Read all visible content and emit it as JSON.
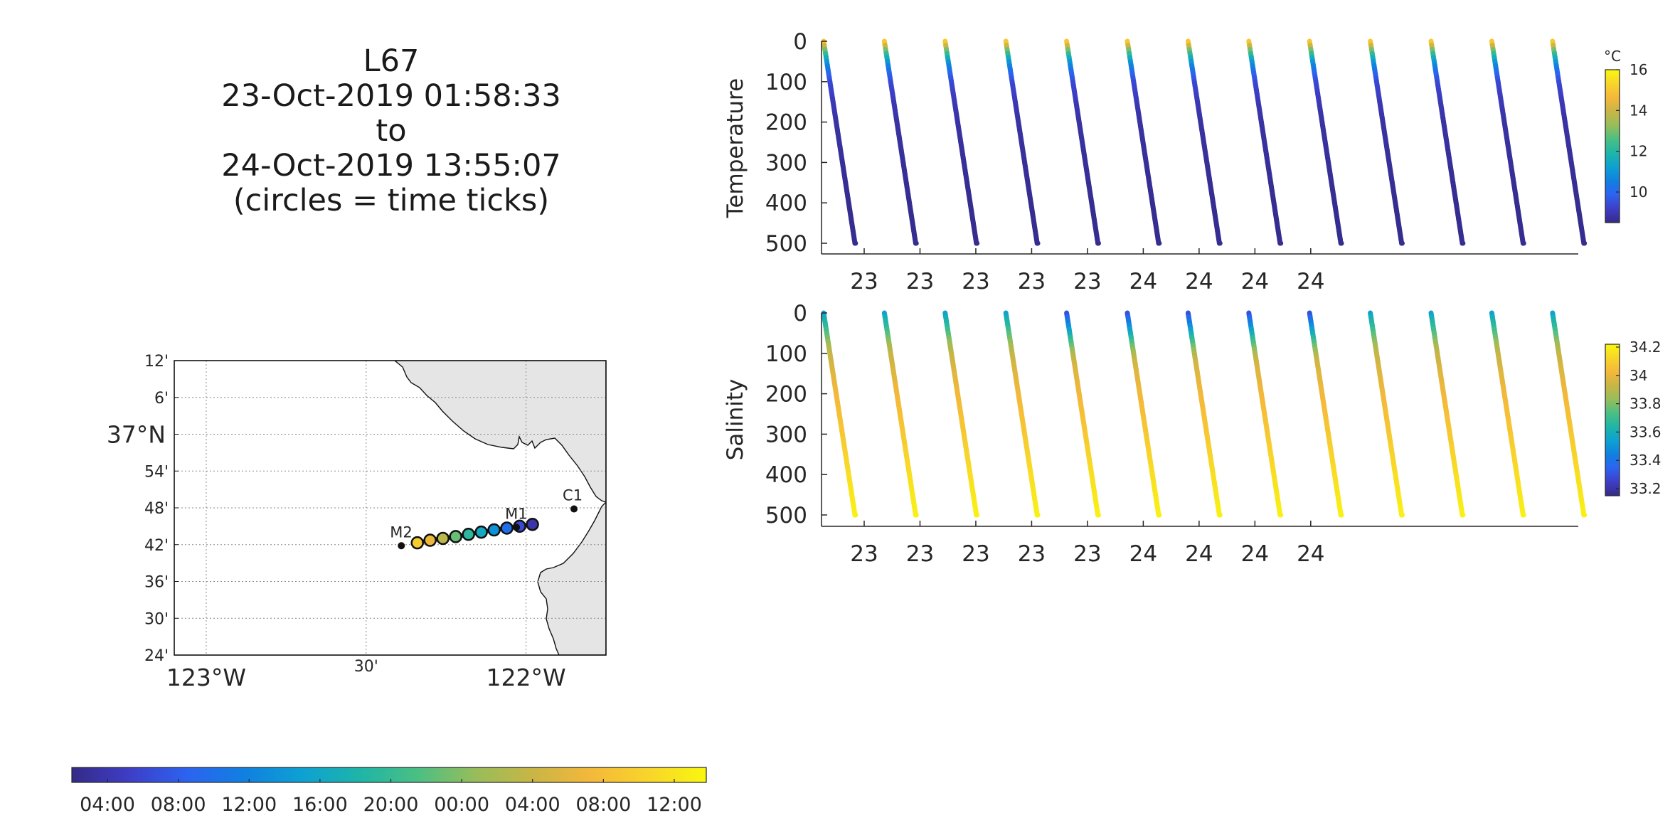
{
  "header": {
    "glider": "L67",
    "start": "23-Oct-2019 01:58:33",
    "to": "to",
    "end": "24-Oct-2019 13:55:07",
    "note": "(circles = time ticks)"
  },
  "colors": {
    "parula": [
      "#352a87",
      "#3e3ec6",
      "#2c63f0",
      "#1080e0",
      "#0da1d2",
      "#1eb5a8",
      "#4bbf83",
      "#97bd5a",
      "#c9b545",
      "#f4b83a",
      "#f8d52a",
      "#f9f70f"
    ],
    "land": "#e5e5e5",
    "grid": "#8a8a8a"
  },
  "chart_data": [
    {
      "type": "scatter",
      "name": "temperature-section",
      "ylabel": "Temperature",
      "yticks": [
        "0",
        "100",
        "200",
        "300",
        "400",
        "500"
      ],
      "ylim": [
        0,
        500
      ],
      "y_reversed": true,
      "xtick_labels": [
        "23",
        "23",
        "23",
        "23",
        "23",
        "24",
        "24",
        "24",
        "24"
      ],
      "colorbar": {
        "unit": "°C",
        "ticks": [
          "10",
          "12",
          "14",
          "16"
        ],
        "range": [
          8.5,
          16
        ]
      },
      "profiles": 13,
      "depth": [
        0,
        10,
        25,
        50,
        75,
        100,
        150,
        200,
        300,
        400,
        500
      ],
      "value": [
        15.0,
        14.0,
        12.5,
        11.0,
        10.0,
        9.4,
        9.0,
        8.8,
        8.7,
        8.6,
        8.6
      ]
    },
    {
      "type": "scatter",
      "name": "salinity-section",
      "ylabel": "Salinity",
      "yticks": [
        "0",
        "100",
        "200",
        "300",
        "400",
        "500"
      ],
      "ylim": [
        0,
        500
      ],
      "y_reversed": true,
      "xtick_labels": [
        "23",
        "23",
        "23",
        "23",
        "23",
        "24",
        "24",
        "24",
        "24"
      ],
      "colorbar": {
        "unit": "",
        "ticks": [
          "33.2",
          "33.4",
          "33.6",
          "33.8",
          "34",
          "34.2"
        ],
        "range": [
          33.15,
          34.22
        ]
      },
      "profiles": 13,
      "depth": [
        0,
        10,
        25,
        50,
        75,
        100,
        150,
        200,
        300,
        400,
        500
      ],
      "value": [
        33.55,
        33.6,
        33.65,
        33.75,
        33.85,
        33.92,
        33.98,
        34.02,
        34.08,
        34.15,
        34.2
      ]
    },
    {
      "type": "map",
      "name": "track-map",
      "lat_ticks": [
        "12'",
        "6'",
        "37°N",
        "54'",
        "48'",
        "42'",
        "36'",
        "30'",
        "24'"
      ],
      "lon_ticks": [
        "123°W",
        "30'",
        "122°W"
      ],
      "lat_range": [
        36.4,
        37.2
      ],
      "lon_range": [
        -123.1,
        -121.75
      ],
      "stations": [
        {
          "name": "M2",
          "lat": 36.697,
          "lon": -122.39
        },
        {
          "name": "M1",
          "lat": 36.747,
          "lon": -122.03
        },
        {
          "name": "C1",
          "lat": 36.797,
          "lon": -121.85
        }
      ],
      "track": [
        {
          "lat": 36.705,
          "lon": -122.34
        },
        {
          "lat": 36.712,
          "lon": -122.3
        },
        {
          "lat": 36.717,
          "lon": -122.26
        },
        {
          "lat": 36.722,
          "lon": -122.22
        },
        {
          "lat": 36.728,
          "lon": -122.18
        },
        {
          "lat": 36.734,
          "lon": -122.14
        },
        {
          "lat": 36.74,
          "lon": -122.1
        },
        {
          "lat": 36.745,
          "lon": -122.06
        },
        {
          "lat": 36.75,
          "lon": -122.02
        },
        {
          "lat": 36.755,
          "lon": -121.98
        }
      ]
    },
    {
      "type": "colorbar",
      "name": "time-colorbar",
      "ticks": [
        "04:00",
        "08:00",
        "12:00",
        "16:00",
        "20:00",
        "00:00",
        "04:00",
        "08:00",
        "12:00"
      ]
    }
  ]
}
